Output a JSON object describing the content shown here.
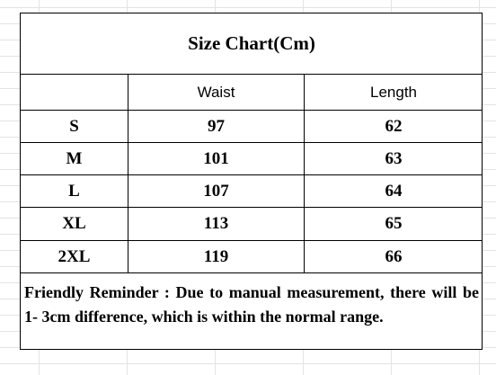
{
  "title": "Size Chart(Cm)",
  "table": {
    "header": [
      "Waist",
      "Length"
    ],
    "rows": [
      [
        "S",
        97,
        62
      ],
      [
        "M",
        101,
        63
      ],
      [
        "L",
        107,
        64
      ],
      [
        "XL",
        113,
        65
      ],
      [
        "2XL",
        119,
        66
      ]
    ]
  },
  "note": "Friendly Reminder : Due to manual measurement, there will be 1- 3cm difference, which is within the normal range."
}
